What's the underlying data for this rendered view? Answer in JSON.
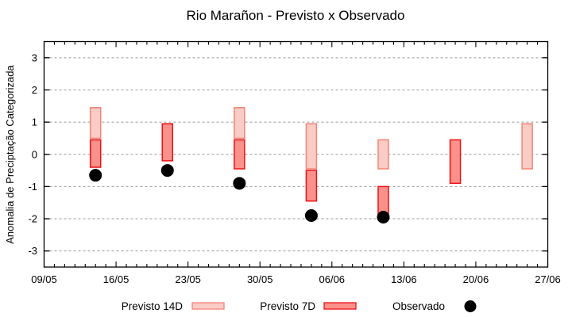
{
  "title": "Rio Marañon - Previsto x Observado",
  "colors": {
    "previsto_14d_fill": "#FBCBC6",
    "previsto_14d_border": "#F08575",
    "previsto_7d_fill": "#FB918B",
    "previsto_7d_border": "#EA1114",
    "observado": "#000000",
    "grid": "#999999",
    "axis": "#000000"
  },
  "chart_data": {
    "type": "bar",
    "subtype": "range-bars-with-scatter",
    "title": "Rio Marañon - Previsto x Observado",
    "xlabel": "",
    "ylabel": "Anomalia de Preciptação Categorizada",
    "ylim": [
      -3.5,
      3.5
    ],
    "y_ticks": [
      -3,
      -2,
      -1,
      0,
      1,
      2,
      3
    ],
    "grid": "horizontal-dashed",
    "x_total_days": 49,
    "x_tick_labels": [
      "09/05",
      "16/05",
      "23/05",
      "30/05",
      "06/06",
      "13/06",
      "20/06",
      "27/06"
    ],
    "x_tick_days": [
      0,
      7,
      14,
      21,
      28,
      35,
      42,
      49
    ],
    "x_minor_tick_every_days": 1,
    "categories": [
      "14/05",
      "21/05",
      "28/05",
      "04/06",
      "11/06",
      "18/06",
      "25/06"
    ],
    "category_days": [
      5,
      12,
      19,
      26,
      33,
      40,
      47
    ],
    "series": [
      {
        "name": "Previsto 14D",
        "type": "range-bar",
        "fill": "#FBCBC6",
        "border": "#F08575",
        "ranges": [
          [
            0.5,
            1.45
          ],
          null,
          [
            0.5,
            1.45
          ],
          [
            -0.45,
            0.95
          ],
          [
            -0.45,
            0.45
          ],
          null,
          [
            -0.45,
            0.95
          ]
        ]
      },
      {
        "name": "Previsto 7D",
        "type": "range-bar",
        "fill": "#FB918B",
        "border": "#EA1114",
        "ranges": [
          [
            -0.4,
            0.45
          ],
          [
            -0.2,
            0.95
          ],
          [
            -0.45,
            0.45
          ],
          [
            -1.45,
            -0.5
          ],
          [
            -1.85,
            -1.0
          ],
          [
            -0.9,
            0.45
          ],
          null
        ]
      },
      {
        "name": "Observado",
        "type": "scatter",
        "color": "#000000",
        "values": [
          -0.65,
          -0.5,
          -0.9,
          -1.9,
          -1.95,
          null,
          null
        ]
      }
    ],
    "legend_position": "below"
  }
}
